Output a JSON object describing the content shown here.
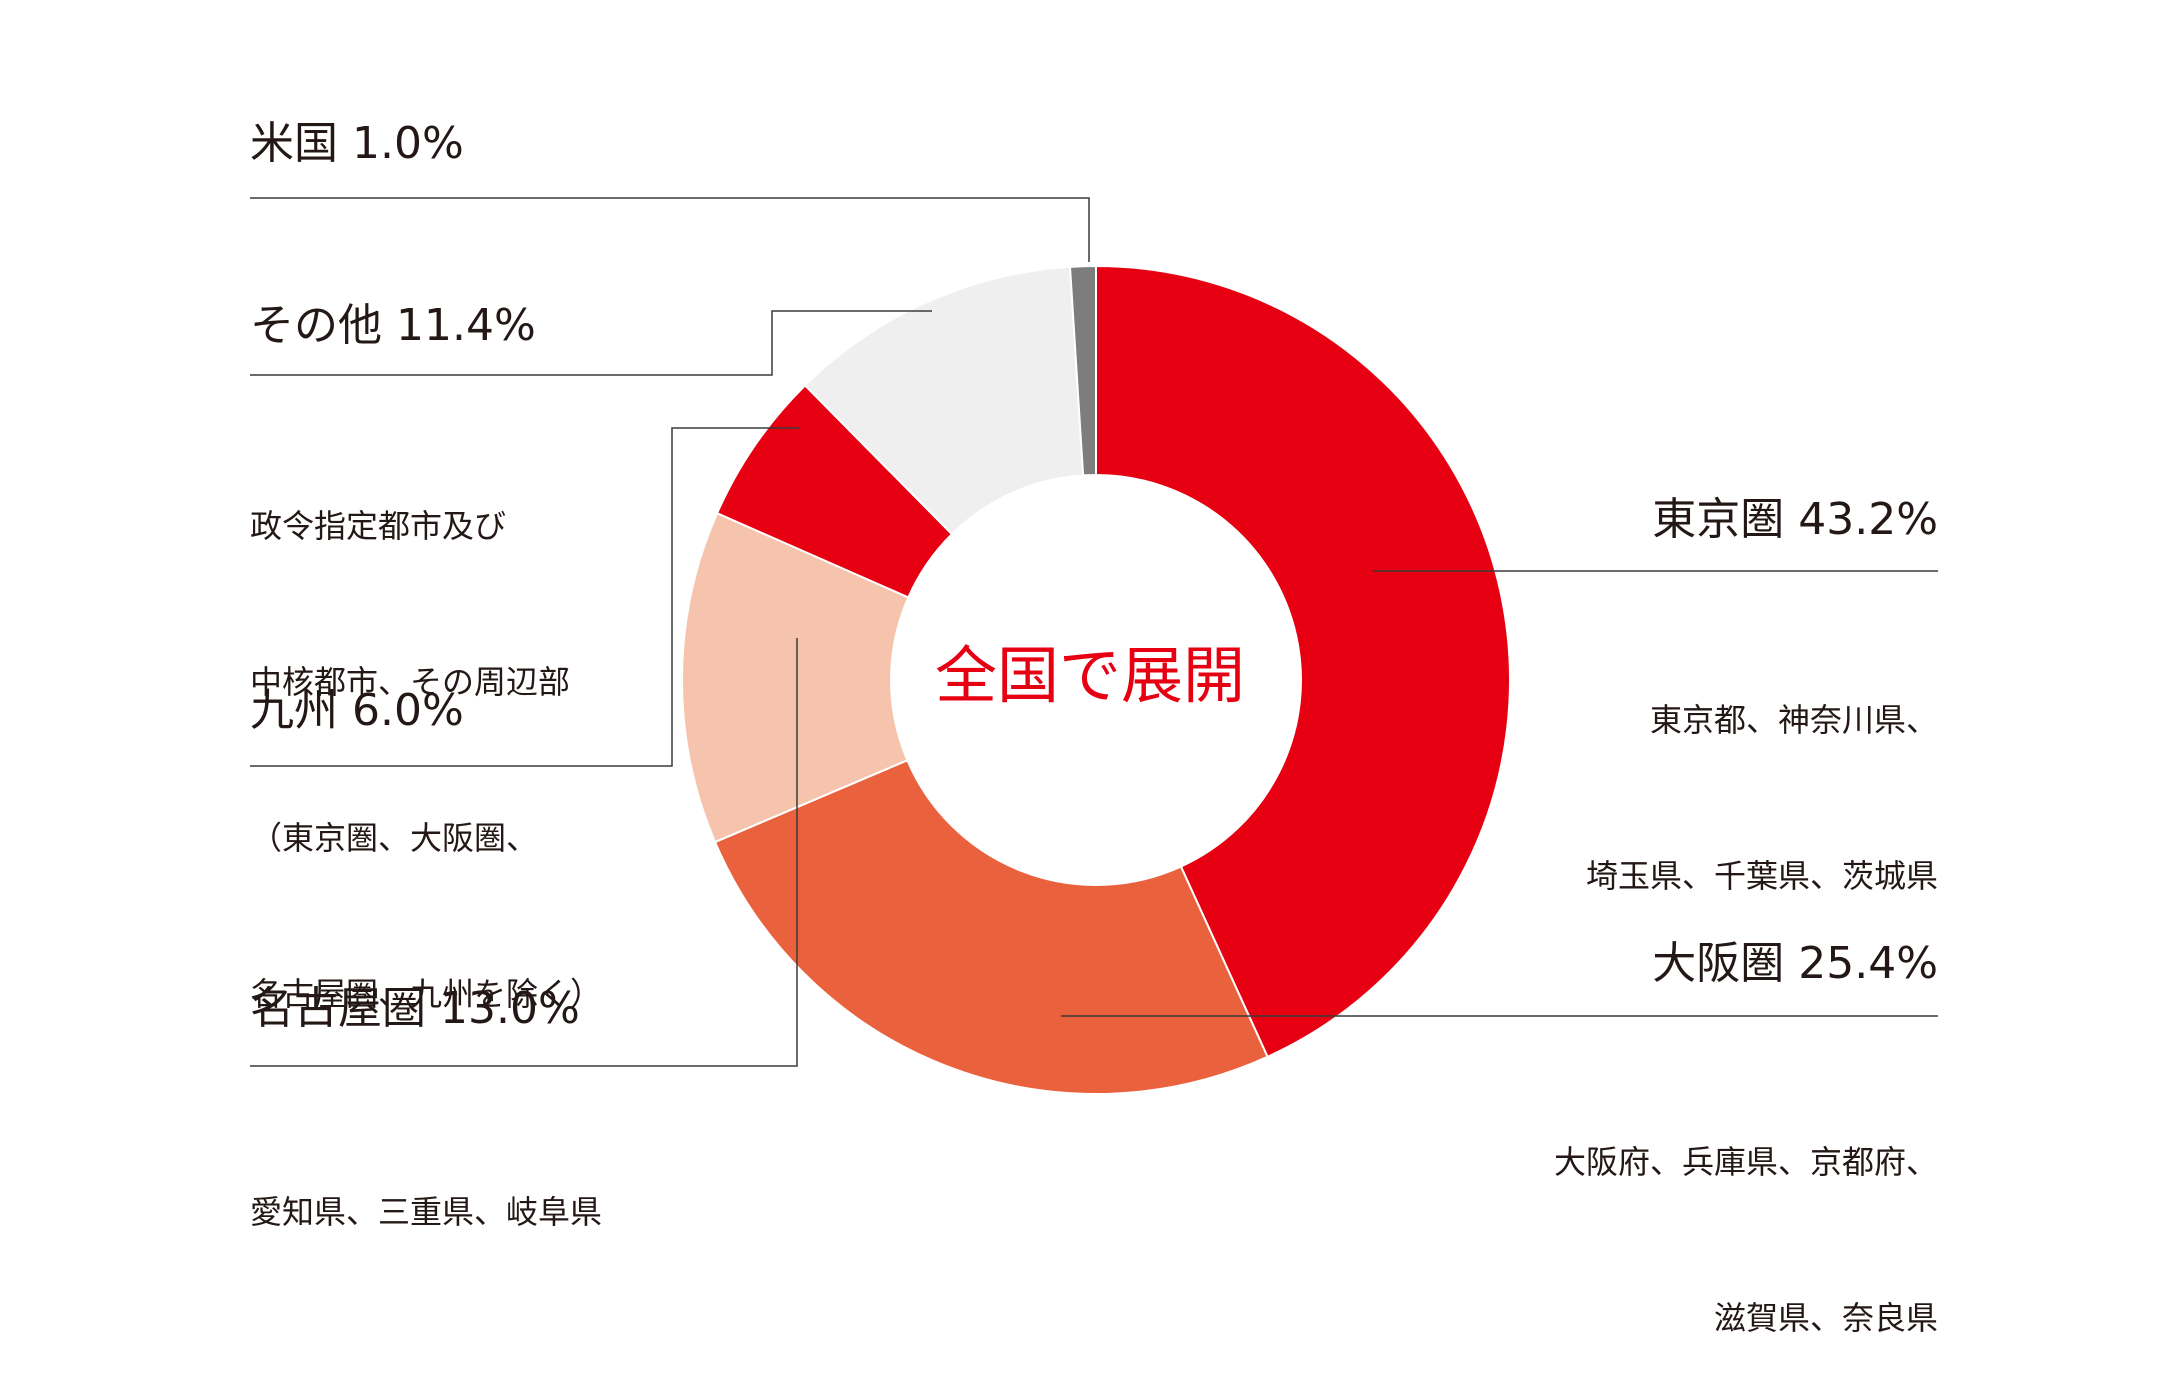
{
  "chart_data": {
    "type": "pie",
    "donut": true,
    "center_label": "全国で展開",
    "slices": [
      {
        "name": "東京圏",
        "value": 43.2,
        "label": "東京圏 43.2%",
        "desc": [
          "東京都、神奈川県、",
          "埼玉県、千葉県、茨城県"
        ],
        "color": "#e60012"
      },
      {
        "name": "大阪圏",
        "value": 25.4,
        "label": "大阪圏 25.4%",
        "desc": [
          "大阪府、兵庫県、京都府、",
          "滋賀県、奈良県"
        ],
        "color": "#ea613d"
      },
      {
        "name": "名古屋圏",
        "value": 13.0,
        "label": "名古屋圏 13.0%",
        "desc": [
          "愛知県、三重県、岐阜県"
        ],
        "color": "#f6c4ad"
      },
      {
        "name": "九州",
        "value": 6.0,
        "label": "九州 6.0%",
        "desc": [],
        "color": "#e60012"
      },
      {
        "name": "その他",
        "value": 11.4,
        "label": "その他 11.4%",
        "desc": [
          "政令指定都市及び",
          "中核都市、その周辺部",
          "（東京圏、大阪圏、",
          "名古屋圏、九州を除く）"
        ],
        "color": "#efefef"
      },
      {
        "name": "米国",
        "value": 1.0,
        "label": "米国 1.0%",
        "desc": [],
        "color": "#7d7d7d"
      }
    ]
  }
}
